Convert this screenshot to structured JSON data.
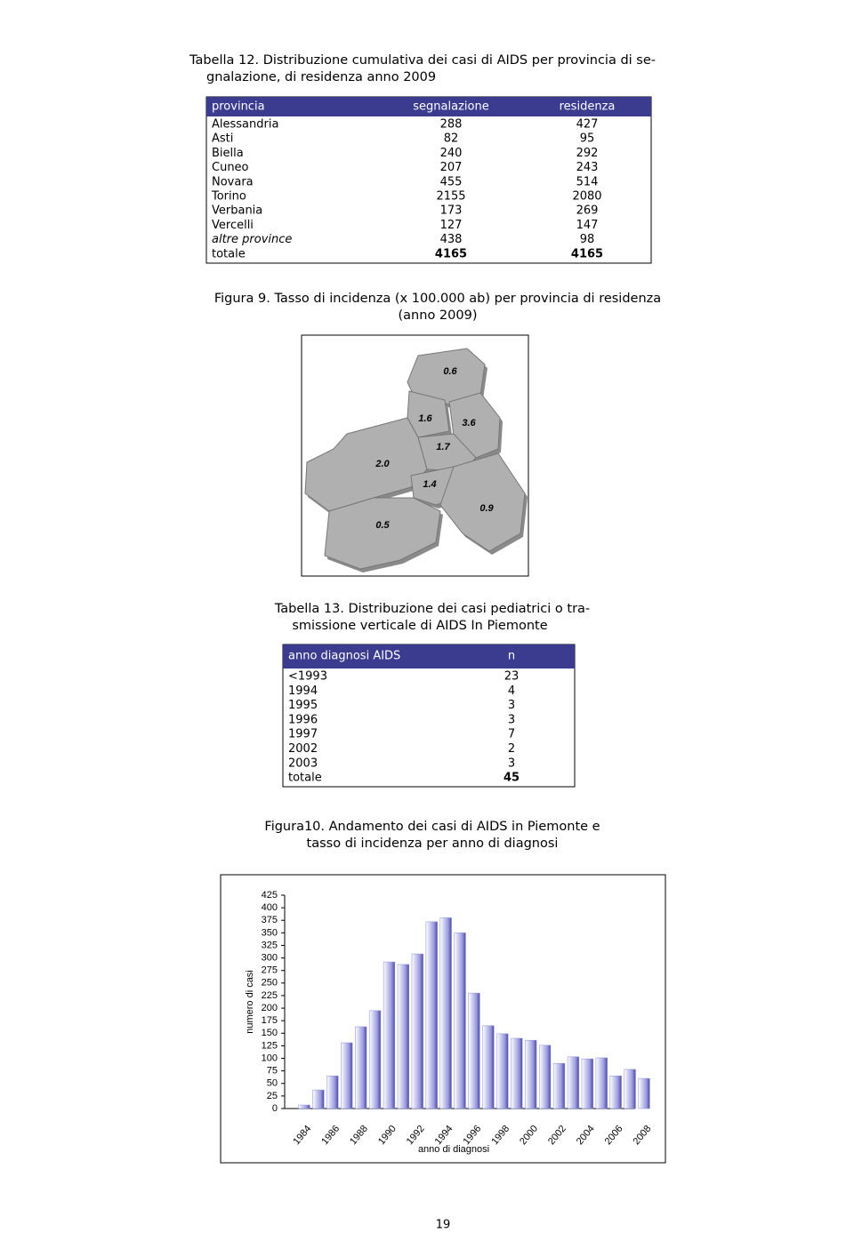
{
  "table12": {
    "title": [
      "Tabella 12. Distribuzione cumulativa dei casi di AIDS per provincia di se-",
      "gnalazione, di residenza anno 2009"
    ],
    "header": [
      "provincia",
      "segnalazione",
      "residenza"
    ],
    "rows": [
      [
        "Alessandria",
        288,
        427
      ],
      [
        "Asti",
        82,
        95
      ],
      [
        "Biella",
        240,
        292
      ],
      [
        "Cuneo",
        207,
        243
      ],
      [
        "Novara",
        455,
        514
      ],
      [
        "Torino",
        2155,
        2080
      ],
      [
        "Verbania",
        173,
        269
      ],
      [
        "Vercelli",
        127,
        147
      ],
      [
        "altre province",
        438,
        98
      ],
      [
        "totale",
        4165,
        4165
      ]
    ]
  },
  "figure9": {
    "title": [
      "Figura 9. Tasso di incidenza (x 100.000 ab) per provincia di residenza",
      "(anno 2009)"
    ],
    "labels": [
      "0.6",
      "1.6",
      "3.6",
      "1.7",
      "2.0",
      "1.4",
      "0.9",
      "0.5"
    ]
  },
  "table13": {
    "title": [
      "Tabella 13. Distribuzione dei casi pediatrici o tra-",
      "smissione verticale di AIDS In Piemonte"
    ],
    "header": [
      "anno diagnosi AIDS",
      "n"
    ],
    "rows": [
      [
        "<1993",
        23
      ],
      [
        "1994",
        4
      ],
      [
        "1995",
        3
      ],
      [
        "1996",
        3
      ],
      [
        "1997",
        7
      ],
      [
        "2002",
        2
      ],
      [
        "2003",
        3
      ],
      [
        "totale",
        45
      ]
    ]
  },
  "chart_data": {
    "type": "bar",
    "title": [
      "Figura10. Andamento dei casi di AIDS in Piemonte e",
      "tasso di incidenza per anno di diagnosi"
    ],
    "y_label": "numero di casi",
    "x_label": "anno di diagnosi",
    "categories": [
      "1984",
      null,
      "1986",
      null,
      "1988",
      null,
      "1990",
      null,
      "1992",
      null,
      "1994",
      null,
      "1996",
      null,
      "1998",
      null,
      "2000",
      null,
      "2002",
      null,
      "2004",
      null,
      "2006",
      null,
      "2008"
    ],
    "values": [
      7,
      37,
      65,
      131,
      163,
      195,
      292,
      287,
      308,
      372,
      380,
      350,
      230,
      165,
      149,
      140,
      136,
      126,
      90,
      103,
      99,
      101,
      65,
      78,
      60
    ],
    "color": "#8c8cd9",
    "ylim": [
      0,
      425
    ],
    "yticks": [
      0,
      25,
      50,
      75,
      100,
      125,
      150,
      175,
      200,
      225,
      250,
      275,
      300,
      325,
      350,
      375,
      400,
      425
    ]
  },
  "page_number": "19"
}
